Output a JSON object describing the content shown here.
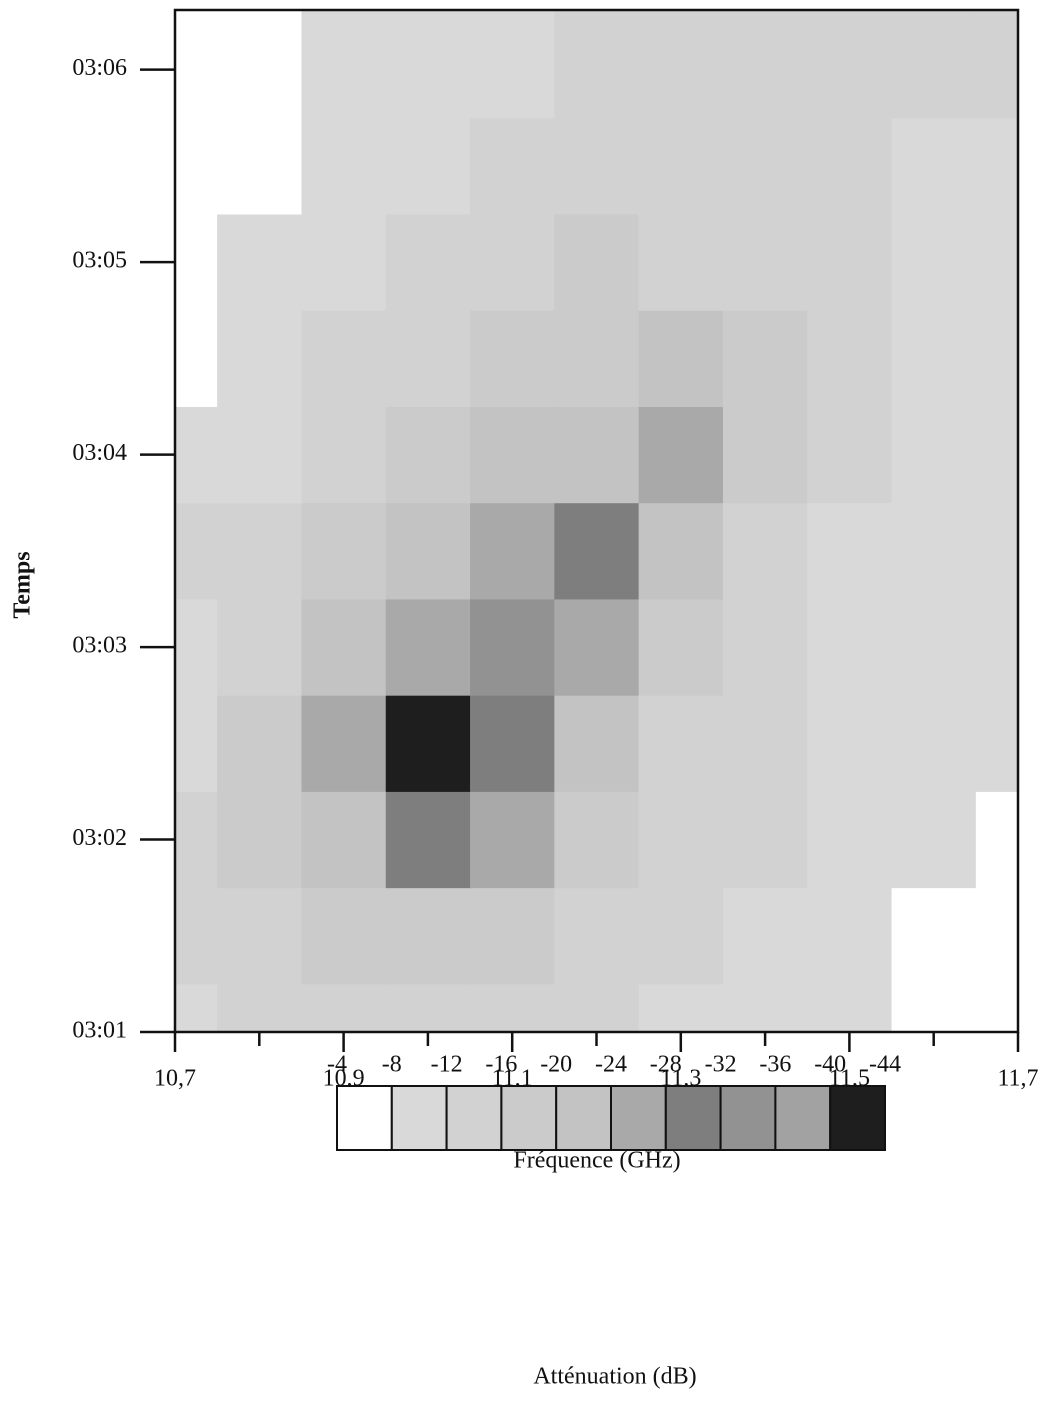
{
  "chart_data": {
    "type": "contour",
    "xlabel": "Fréquence (GHz)",
    "ylabel": "Temps",
    "legend_title": "Atténuation (dB)",
    "xlim": [
      10.7,
      11.7
    ],
    "xticks": [
      {
        "value": 10.7,
        "label": "10,7"
      },
      {
        "value": 10.9,
        "label": "10,9"
      },
      {
        "value": 11.1,
        "label": "11,1"
      },
      {
        "value": 11.3,
        "label": "11,3"
      },
      {
        "value": 11.5,
        "label": "11,5"
      },
      {
        "value": 11.7,
        "label": "11,7"
      }
    ],
    "xminorticks": [
      10.8,
      11.0,
      11.2,
      11.4,
      11.6
    ],
    "ylim": [
      181,
      186.31
    ],
    "yticks": [
      {
        "value": 181,
        "label": "03:01"
      },
      {
        "value": 182,
        "label": "03:02"
      },
      {
        "value": 183,
        "label": "03:03"
      },
      {
        "value": 184,
        "label": "03:04"
      },
      {
        "value": 185,
        "label": "03:05"
      },
      {
        "value": 186,
        "label": "03:06"
      }
    ],
    "x": [
      10.7,
      10.8,
      10.9,
      11.0,
      11.1,
      11.2,
      11.3,
      11.4,
      11.5,
      11.6,
      11.7
    ],
    "y": [
      181,
      181.5,
      182,
      182.5,
      183,
      183.5,
      184,
      184.5,
      185,
      185.5,
      186
    ],
    "z": [
      [
        -10,
        -12,
        -14,
        -14,
        -12,
        -12,
        -10,
        -10,
        -8,
        -6,
        -4
      ],
      [
        -12,
        -14,
        -16,
        -18,
        -16,
        -14,
        -12,
        -10,
        -8,
        -6,
        -4
      ],
      [
        -12,
        -16,
        -22,
        -30,
        -24,
        -18,
        -14,
        -12,
        -10,
        -8,
        -6
      ],
      [
        -10,
        -16,
        -26,
        -42,
        -30,
        -20,
        -14,
        -12,
        -10,
        -8,
        -8
      ],
      [
        -10,
        -14,
        -20,
        -26,
        -32,
        -24,
        -18,
        -12,
        -10,
        -8,
        -8
      ],
      [
        -12,
        -12,
        -16,
        -20,
        -24,
        -28,
        -22,
        -14,
        -10,
        -8,
        -8
      ],
      [
        -8,
        -10,
        -14,
        -18,
        -20,
        -22,
        -26,
        -18,
        -12,
        -10,
        -8
      ],
      [
        -6,
        -10,
        -12,
        -14,
        -16,
        -18,
        -20,
        -16,
        -12,
        -10,
        -8
      ],
      [
        -4,
        -8,
        -10,
        -12,
        -14,
        -16,
        -14,
        -14,
        -12,
        -10,
        -8
      ],
      [
        -4,
        -6,
        -10,
        -10,
        -12,
        -14,
        -14,
        -12,
        -12,
        -10,
        -10
      ],
      [
        -4,
        -4,
        -8,
        -10,
        -10,
        -12,
        -14,
        -12,
        -12,
        -14,
        -12
      ]
    ],
    "levels": [
      -4,
      -8,
      -12,
      -16,
      -20,
      -24,
      -28,
      -32,
      -36,
      -40,
      -44
    ],
    "colors": [
      "#ffffff",
      "#d9d9d9",
      "#d2d2d2",
      "#cbcbcb",
      "#c3c3c3",
      "#a9a9a9",
      "#7e7e7e",
      "#929292",
      "#a2a2a2",
      "#1e1e1e"
    ]
  }
}
